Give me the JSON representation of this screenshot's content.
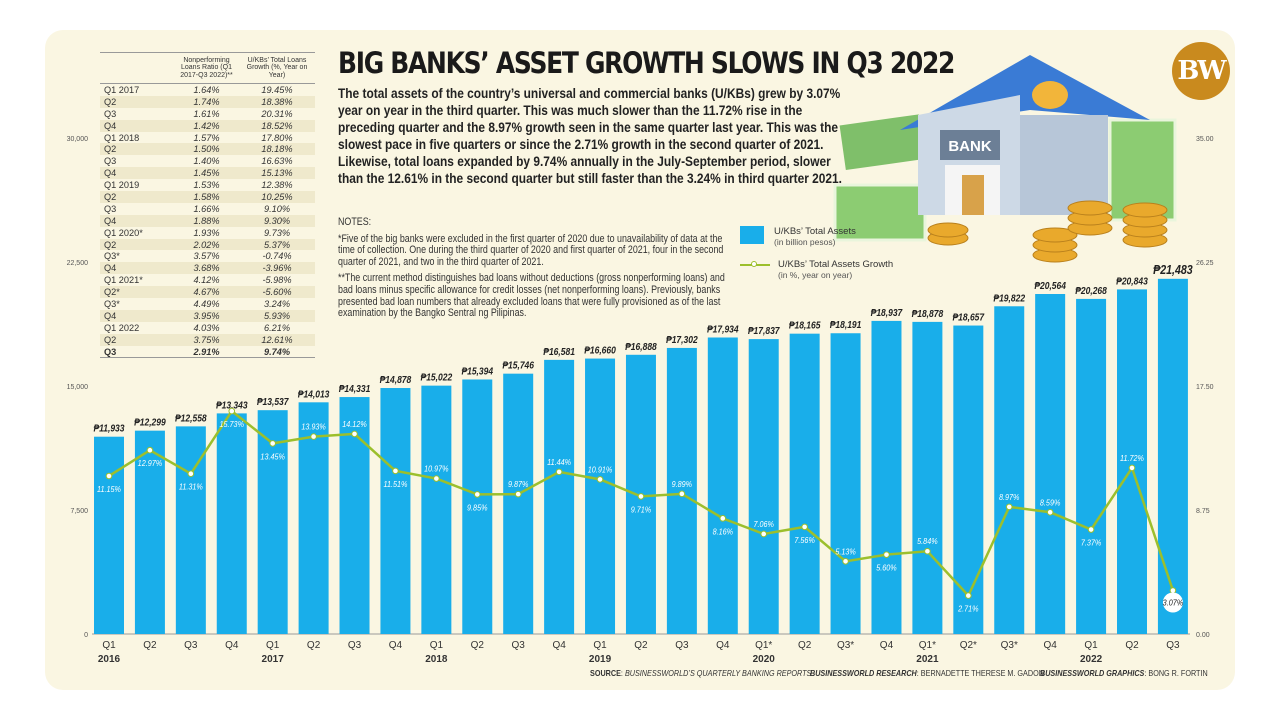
{
  "title": "BIG BANKS’ ASSET GROWTH SLOWS IN Q3 2022",
  "body": "The total assets of the country’s universal and commercial banks (U/KBs) grew by 3.07% year on year in the third quarter. This was much slower than the 11.72% rise in the preceding quarter and the 8.97% growth seen in the same quarter last year. This was the slowest pace in five quarters or since the 2.71% growth in the second quarter of 2021. Likewise, total loans expanded by 9.74% annually in the July-September period, slower than the 12.61% in the second quarter but still faster than the 3.24% in third quarter 2021.",
  "notes": {
    "heading": "NOTES:",
    "note1": "*Five of the big banks were excluded in the first quarter of 2020 due to unavailability of data at the time of collection. One during the third quarter of 2020 and first quarter of 2021, four in the second quarter of 2021, and two in the third quarter of 2021.",
    "note2": "**The current method distinguishes bad loans without deductions (gross nonperforming loans) and bad loans minus specific allowance for credit losses (net nonperforming loans). Previously, banks presented bad loan numbers that already excluded loans that were fully provisioned as of the last examination by the Bangko Sentral ng Pilipinas."
  },
  "logo": "BW",
  "bank_sign": "BANK",
  "table": {
    "headers": [
      "",
      "Nonperforming Loans Ratio (Q1 2017-Q3 2022)**",
      "U/KBs’ Total Loans Growth (%, Year on Year)"
    ],
    "rows": [
      [
        "Q1 2017",
        "1.64%",
        "19.45%"
      ],
      [
        "Q2",
        "1.74%",
        "18.38%"
      ],
      [
        "Q3",
        "1.61%",
        "20.31%"
      ],
      [
        "Q4",
        "1.42%",
        "18.52%"
      ],
      [
        "Q1 2018",
        "1.57%",
        "17.80%"
      ],
      [
        "Q2",
        "1.50%",
        "18.18%"
      ],
      [
        "Q3",
        "1.40%",
        "16.63%"
      ],
      [
        "Q4",
        "1.45%",
        "15.13%"
      ],
      [
        "Q1 2019",
        "1.53%",
        "12.38%"
      ],
      [
        "Q2",
        "1.58%",
        "10.25%"
      ],
      [
        "Q3",
        "1.66%",
        "9.10%"
      ],
      [
        "Q4",
        "1.88%",
        "9.30%"
      ],
      [
        "Q1 2020*",
        "1.93%",
        "9.73%"
      ],
      [
        "Q2",
        "2.02%",
        "5.37%"
      ],
      [
        "Q3*",
        "3.57%",
        "-0.74%"
      ],
      [
        "Q4",
        "3.68%",
        "-3.96%"
      ],
      [
        "Q1 2021*",
        "4.12%",
        "-5.98%"
      ],
      [
        "Q2*",
        "4.67%",
        "-5.60%"
      ],
      [
        "Q3*",
        "4.49%",
        "3.24%"
      ],
      [
        "Q4",
        "3.95%",
        "5.93%"
      ],
      [
        "Q1 2022",
        "4.03%",
        "6.21%"
      ],
      [
        "Q2",
        "3.75%",
        "12.61%"
      ],
      [
        "Q3",
        "2.91%",
        "9.74%"
      ]
    ]
  },
  "legend": {
    "assets": "U/KBs’ Total Assets",
    "assets_unit": "(in billion pesos)",
    "growth": "U/KBs’ Total Assets Growth",
    "growth_unit": "(in %, year on year)"
  },
  "footer": {
    "source_label": "SOURCE",
    "source": "BUSINESSWORLD’S QUARTERLY BANKING REPORTS",
    "research_label": "BUSINESSWORLD RESEARCH",
    "research": "BERNADETTE THERESE M. GADON",
    "graphics_label": "BUSINESSWORLD GRAPHICS",
    "graphics": "BONG R. FORTIN"
  },
  "colors": {
    "bar": "#19aeea",
    "line": "#9cbf2c",
    "brand": "#c98a1e"
  },
  "chart_data": {
    "type": "bar+line",
    "quarters": [
      "Q1",
      "Q2",
      "Q3",
      "Q4",
      "Q1",
      "Q2",
      "Q3",
      "Q4",
      "Q1",
      "Q2",
      "Q3",
      "Q4",
      "Q1",
      "Q2",
      "Q3",
      "Q4",
      "Q1*",
      "Q2",
      "Q3*",
      "Q4",
      "Q1*",
      "Q2*",
      "Q3*",
      "Q4",
      "Q1",
      "Q2",
      "Q3"
    ],
    "years": [
      "2016",
      "",
      "",
      "",
      "2017",
      "",
      "",
      "",
      "2018",
      "",
      "",
      "",
      "2019",
      "",
      "",
      "",
      "2020",
      "",
      "",
      "",
      "2021",
      "",
      "",
      "",
      "2022",
      "",
      ""
    ],
    "series": [
      {
        "name": "U/KBs’ Total Assets",
        "axis": "left",
        "type": "bar",
        "values": [
          11933,
          12299,
          12558,
          13343,
          13537,
          14013,
          14331,
          14878,
          15022,
          15394,
          15746,
          16581,
          16660,
          16888,
          17302,
          17934,
          17837,
          18165,
          18191,
          18937,
          18878,
          18657,
          19822,
          20564,
          20268,
          20843,
          21483
        ],
        "labels": [
          "₱11,933",
          "₱12,299",
          "₱12,558",
          "₱13,343",
          "₱13,537",
          "₱14,013",
          "₱14,331",
          "₱14,878",
          "₱15,022",
          "₱15,394",
          "₱15,746",
          "₱16,581",
          "₱16,660",
          "₱16,888",
          "₱17,302",
          "₱17,934",
          "₱17,837",
          "₱18,165",
          "₱18,191",
          "₱18,937",
          "₱18,878",
          "₱18,657",
          "₱19,822",
          "₱20,564",
          "₱20,268",
          "₱20,843",
          "₱21,483"
        ]
      },
      {
        "name": "U/KBs’ Total Assets Growth",
        "axis": "right",
        "type": "line",
        "values": [
          11.15,
          12.97,
          11.31,
          15.73,
          13.45,
          13.93,
          14.12,
          11.51,
          10.97,
          9.85,
          9.87,
          11.44,
          10.91,
          9.71,
          9.89,
          8.16,
          7.06,
          7.56,
          5.13,
          5.6,
          5.84,
          2.71,
          8.97,
          8.59,
          7.37,
          11.72,
          3.07
        ],
        "labels": [
          "11.15%",
          "12.97%",
          "11.31%",
          "15.73%",
          "13.45%",
          "13.93%",
          "14.12%",
          "11.51%",
          "10.97%",
          "9.85%",
          "9.87%",
          "11.44%",
          "10.91%",
          "9.71%",
          "9.89%",
          "8.16%",
          "7.06%",
          "7.56%",
          "5.13%",
          "5.60%",
          "5.84%",
          "2.71%",
          "8.97%",
          "8.59%",
          "7.37%",
          "11.72%",
          "3.07%"
        ]
      }
    ],
    "left_axis": {
      "ticks": [
        "0",
        "7,500",
        "15,000",
        "22,500",
        "30,000"
      ],
      "range": [
        0,
        30000
      ]
    },
    "right_axis": {
      "ticks": [
        "0.00",
        "8.75",
        "17.50",
        "26.25",
        "35.00"
      ],
      "range": [
        0,
        35
      ]
    },
    "grid": false,
    "legend_placement": "top-center"
  }
}
